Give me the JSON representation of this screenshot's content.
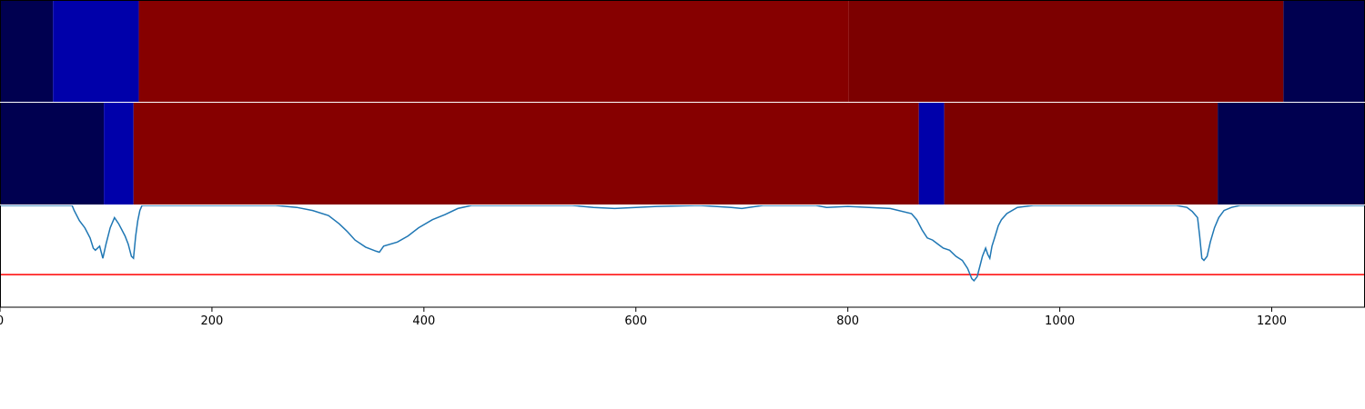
{
  "chart_data": {
    "type": "area",
    "xlim": [
      0,
      1288
    ],
    "x_ticks": [
      {
        "value": 0,
        "label": "0"
      },
      {
        "value": 200,
        "label": "200"
      },
      {
        "value": 400,
        "label": "400"
      },
      {
        "value": 600,
        "label": "600"
      },
      {
        "value": 800,
        "label": "800"
      },
      {
        "value": 1000,
        "label": "1000"
      },
      {
        "value": 1200,
        "label": "1200"
      }
    ],
    "segment_tracks": [
      {
        "segments": [
          {
            "start": 0,
            "end": 50,
            "color": "#000050"
          },
          {
            "start": 50,
            "end": 131,
            "color": "#0000aa"
          },
          {
            "start": 131,
            "end": 801,
            "color": "#860000"
          },
          {
            "start": 801,
            "end": 1211,
            "color": "#7c0000"
          },
          {
            "start": 1211,
            "end": 1288,
            "color": "#000050"
          }
        ]
      },
      {
        "segments": [
          {
            "start": 0,
            "end": 98,
            "color": "#000050"
          },
          {
            "start": 98,
            "end": 126,
            "color": "#0000aa"
          },
          {
            "start": 126,
            "end": 867,
            "color": "#860000"
          },
          {
            "start": 867,
            "end": 891,
            "color": "#0000aa"
          },
          {
            "start": 891,
            "end": 1149,
            "color": "#7c0000"
          },
          {
            "start": 1149,
            "end": 1288,
            "color": "#000050"
          }
        ]
      }
    ],
    "line_ylim": [
      -1.0,
      0.0
    ],
    "threshold": -0.68,
    "threshold_color": "#ff0000",
    "line_color": "#1f77b4",
    "line_points": [
      [
        0,
        0.0
      ],
      [
        68,
        0.0
      ],
      [
        70,
        -0.05
      ],
      [
        75,
        -0.15
      ],
      [
        80,
        -0.22
      ],
      [
        85,
        -0.32
      ],
      [
        88,
        -0.42
      ],
      [
        90,
        -0.44
      ],
      [
        94,
        -0.4
      ],
      [
        97,
        -0.52
      ],
      [
        100,
        -0.38
      ],
      [
        104,
        -0.22
      ],
      [
        108,
        -0.12
      ],
      [
        112,
        -0.18
      ],
      [
        115,
        -0.24
      ],
      [
        118,
        -0.3
      ],
      [
        121,
        -0.38
      ],
      [
        124,
        -0.5
      ],
      [
        126,
        -0.52
      ],
      [
        128,
        -0.3
      ],
      [
        130,
        -0.15
      ],
      [
        132,
        -0.05
      ],
      [
        134,
        0.0
      ],
      [
        260,
        0.0
      ],
      [
        280,
        -0.02
      ],
      [
        295,
        -0.05
      ],
      [
        310,
        -0.1
      ],
      [
        320,
        -0.18
      ],
      [
        328,
        -0.26
      ],
      [
        335,
        -0.34
      ],
      [
        345,
        -0.41
      ],
      [
        355,
        -0.45
      ],
      [
        358,
        -0.46
      ],
      [
        362,
        -0.4
      ],
      [
        375,
        -0.36
      ],
      [
        385,
        -0.3
      ],
      [
        395,
        -0.22
      ],
      [
        408,
        -0.14
      ],
      [
        420,
        -0.09
      ],
      [
        432,
        -0.03
      ],
      [
        445,
        0.0
      ],
      [
        540,
        0.0
      ],
      [
        560,
        -0.02
      ],
      [
        580,
        -0.03
      ],
      [
        600,
        -0.02
      ],
      [
        620,
        -0.01
      ],
      [
        660,
        0.0
      ],
      [
        690,
        -0.02
      ],
      [
        700,
        -0.03
      ],
      [
        720,
        0.0
      ],
      [
        770,
        0.0
      ],
      [
        780,
        -0.02
      ],
      [
        800,
        -0.01
      ],
      [
        820,
        -0.02
      ],
      [
        840,
        -0.03
      ],
      [
        860,
        -0.08
      ],
      [
        865,
        -0.14
      ],
      [
        870,
        -0.24
      ],
      [
        875,
        -0.32
      ],
      [
        880,
        -0.34
      ],
      [
        885,
        -0.38
      ],
      [
        890,
        -0.42
      ],
      [
        896,
        -0.44
      ],
      [
        902,
        -0.5
      ],
      [
        908,
        -0.54
      ],
      [
        913,
        -0.62
      ],
      [
        917,
        -0.72
      ],
      [
        919,
        -0.74
      ],
      [
        922,
        -0.7
      ],
      [
        925,
        -0.58
      ],
      [
        927,
        -0.5
      ],
      [
        930,
        -0.42
      ],
      [
        932,
        -0.48
      ],
      [
        934,
        -0.52
      ],
      [
        936,
        -0.4
      ],
      [
        939,
        -0.3
      ],
      [
        942,
        -0.2
      ],
      [
        945,
        -0.14
      ],
      [
        950,
        -0.08
      ],
      [
        960,
        -0.02
      ],
      [
        975,
        0.0
      ],
      [
        1110,
        0.0
      ],
      [
        1120,
        -0.02
      ],
      [
        1125,
        -0.06
      ],
      [
        1130,
        -0.12
      ],
      [
        1132,
        -0.3
      ],
      [
        1134,
        -0.52
      ],
      [
        1136,
        -0.54
      ],
      [
        1139,
        -0.5
      ],
      [
        1142,
        -0.36
      ],
      [
        1146,
        -0.22
      ],
      [
        1150,
        -0.12
      ],
      [
        1155,
        -0.05
      ],
      [
        1162,
        -0.02
      ],
      [
        1170,
        0.0
      ],
      [
        1288,
        0.0
      ]
    ]
  }
}
